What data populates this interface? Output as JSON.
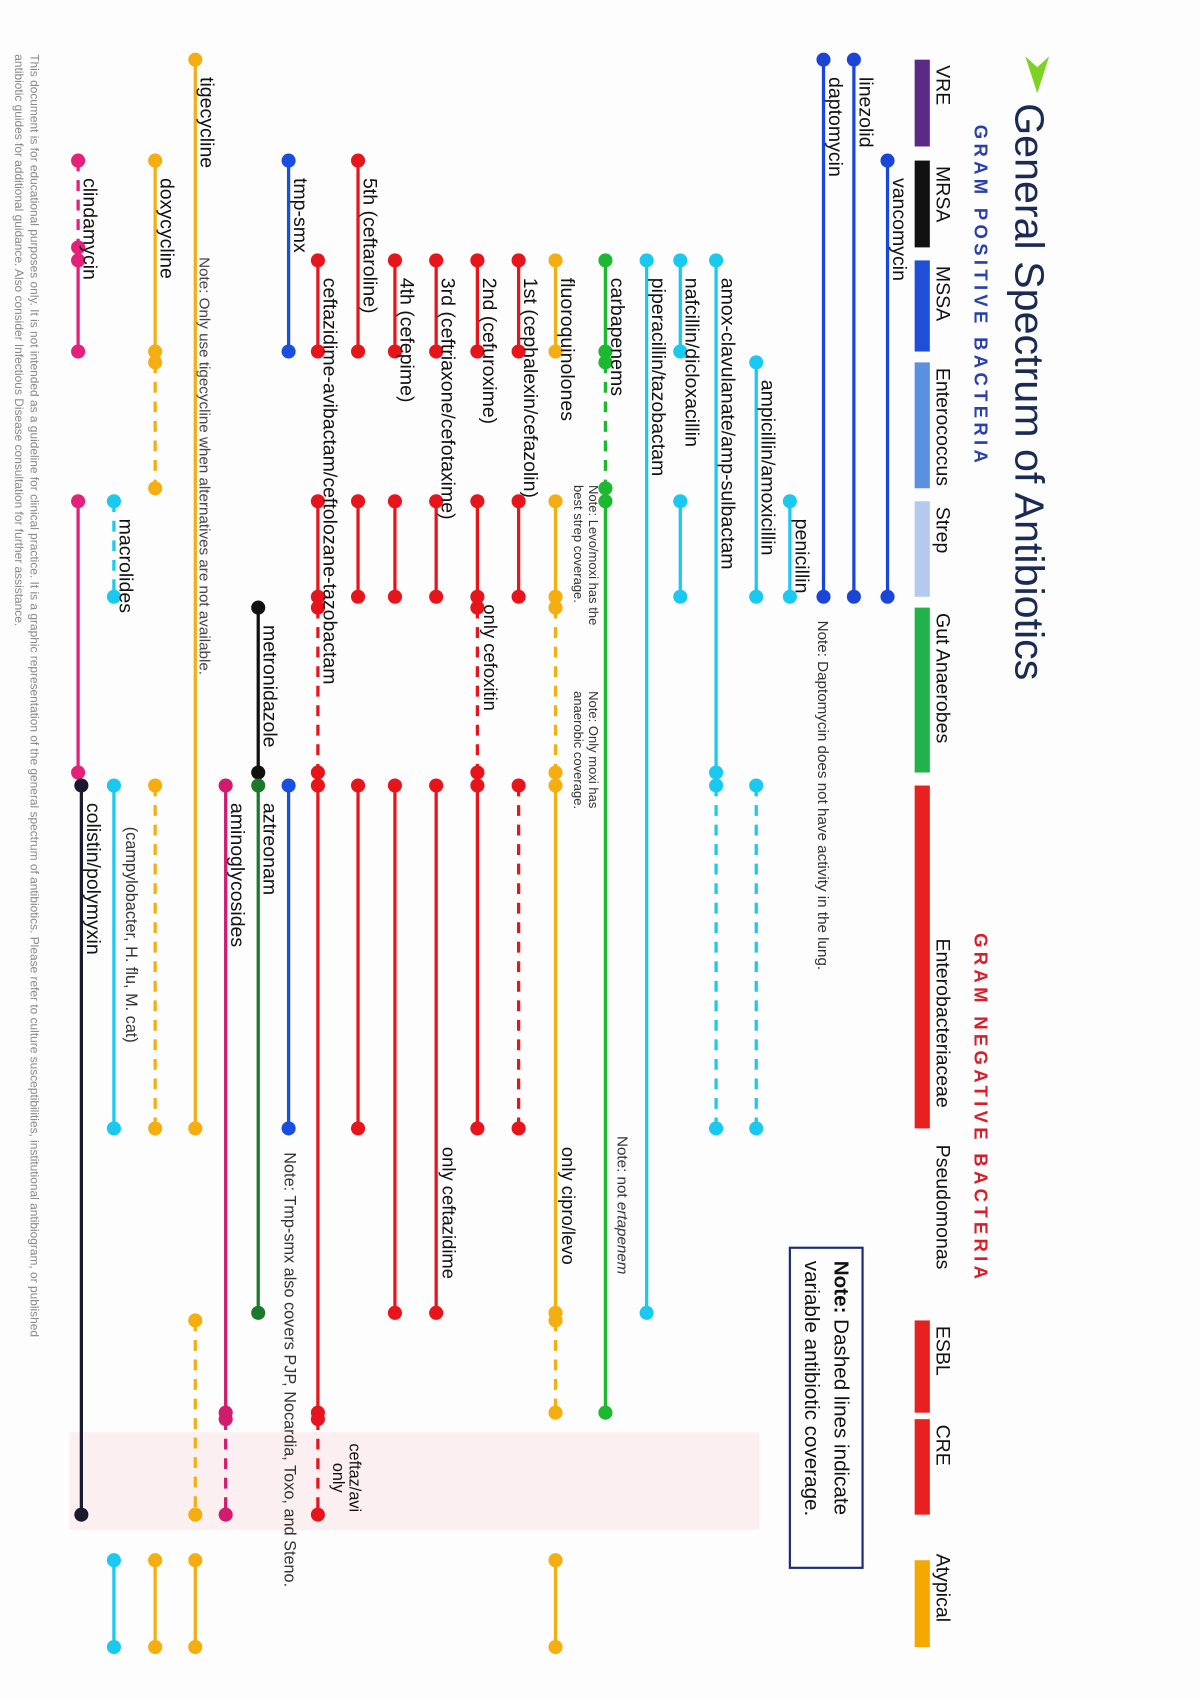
{
  "title": "General Spectrum of Antibiotics",
  "gram_positive_heading": "GRAM POSITIVE BACTERIA",
  "gram_negative_heading": "GRAM NEGATIVE BACTERIA",
  "bacteria": [
    {
      "name": "VRE",
      "color": "#5b2a86"
    },
    {
      "name": "MRSA",
      "color": "#111111"
    },
    {
      "name": "MSSA",
      "color": "#1f4fd6"
    },
    {
      "name": "Enterococcus",
      "color": "#5b8fe0"
    },
    {
      "name": "Strep",
      "color": "#b3c9ef"
    },
    {
      "name": "Gut Anaerobes",
      "color": "#22b24c"
    },
    {
      "name": "Enterobacteriaceae",
      "color": "#e8201f"
    },
    {
      "name": "Pseudomonas",
      "color": ""
    },
    {
      "name": "ESBL",
      "color": "#e8201f"
    },
    {
      "name": "CRE",
      "color": "#e8201f"
    },
    {
      "name": "Atypical",
      "color": "#f5a800"
    }
  ],
  "legend_note": {
    "bold": "Note:",
    "line1": " Dashed lines indicate",
    "line2": "variable antibiotic coverage."
  },
  "antibiotics": [
    {
      "label": "vancomycin",
      "color": "#1a45d8",
      "coverage": [
        {
          "from": "MRSA",
          "to": "Strep",
          "style": "solid"
        }
      ]
    },
    {
      "label": "linezolid",
      "color": "#1a45d8",
      "coverage": [
        {
          "from": "VRE",
          "to": "Strep",
          "style": "solid"
        }
      ]
    },
    {
      "label": "daptomycin",
      "color": "#1a45d8",
      "coverage": [
        {
          "from": "VRE",
          "to": "Strep",
          "style": "solid"
        }
      ]
    },
    {
      "label": "penicillin",
      "color": "#19c9ef",
      "coverage": [
        {
          "from": "Strep",
          "to": "Strep",
          "style": "solid"
        }
      ]
    },
    {
      "label": "ampicillin/amoxicillin",
      "color": "#19c9ef",
      "coverage": [
        {
          "from": "Enterococcus",
          "to": "Strep",
          "style": "solid"
        },
        {
          "from": "Enterobacteriaceae",
          "to": "Enterobacteriaceae",
          "style": "dashed"
        }
      ]
    },
    {
      "label": "amox-clavulanate/amp-sulbactam",
      "color": "#19c9ef",
      "coverage": [
        {
          "from": "MSSA",
          "to": "Gut Anaerobes",
          "style": "solid"
        },
        {
          "from": "Enterobacteriaceae",
          "to": "Enterobacteriaceae",
          "style": "dashed"
        }
      ]
    },
    {
      "label": "nafcillin/dicloxacillin",
      "color": "#19c9ef",
      "coverage": [
        {
          "from": "MSSA",
          "to": "MSSA",
          "style": "solid"
        },
        {
          "from": "Strep",
          "to": "Strep",
          "style": "solid"
        }
      ]
    },
    {
      "label": "piperacillin/tazobactam",
      "color": "#19c9ef",
      "coverage": [
        {
          "from": "MSSA",
          "to": "Pseudomonas",
          "style": "solid"
        }
      ]
    },
    {
      "label": "carbapenems",
      "color": "#1cb82f",
      "coverage": [
        {
          "from": "MSSA",
          "to": "MSSA",
          "style": "solid"
        },
        {
          "from": "Enterococcus",
          "to": "Enterococcus",
          "style": "dashed"
        },
        {
          "from": "Strep",
          "to": "ESBL",
          "style": "solid"
        }
      ]
    },
    {
      "label": "fluoroquinolones",
      "color": "#f5ae10",
      "coverage": [
        {
          "from": "MSSA",
          "to": "MSSA",
          "style": "solid"
        },
        {
          "from": "Strep",
          "to": "Strep",
          "style": "solid"
        },
        {
          "from": "Gut Anaerobes",
          "to": "Gut Anaerobes",
          "style": "dashed"
        },
        {
          "from": "Enterobacteriaceae",
          "to": "Pseudomonas",
          "style": "solid"
        },
        {
          "from": "ESBL",
          "to": "ESBL",
          "style": "dashed"
        },
        {
          "from": "Atypical",
          "to": "Atypical",
          "style": "solid"
        }
      ]
    },
    {
      "label": "1st (cephalexin/cefazolin)",
      "color": "#e8141c",
      "coverage": [
        {
          "from": "MSSA",
          "to": "MSSA",
          "style": "solid"
        },
        {
          "from": "Strep",
          "to": "Strep",
          "style": "solid"
        },
        {
          "from": "Enterobacteriaceae",
          "to": "Enterobacteriaceae",
          "style": "dashed"
        }
      ]
    },
    {
      "label": "2nd (cefuroxime)",
      "color": "#e8141c",
      "coverage": [
        {
          "from": "MSSA",
          "to": "MSSA",
          "style": "solid"
        },
        {
          "from": "Strep",
          "to": "Strep",
          "style": "solid"
        },
        {
          "from": "Gut Anaerobes",
          "to": "Gut Anaerobes",
          "style": "dashed"
        },
        {
          "from": "Enterobacteriaceae",
          "to": "Enterobacteriaceae",
          "style": "solid"
        }
      ]
    },
    {
      "label": "3rd (ceftriaxone/cefotaxime)",
      "color": "#e8141c",
      "coverage": [
        {
          "from": "MSSA",
          "to": "MSSA",
          "style": "solid"
        },
        {
          "from": "Strep",
          "to": "Strep",
          "style": "solid"
        },
        {
          "from": "Enterobacteriaceae",
          "to": "Pseudomonas",
          "style": "solid"
        }
      ]
    },
    {
      "label": "4th (cefepime)",
      "color": "#e8141c",
      "coverage": [
        {
          "from": "MSSA",
          "to": "MSSA",
          "style": "solid"
        },
        {
          "from": "Strep",
          "to": "Strep",
          "style": "solid"
        },
        {
          "from": "Enterobacteriaceae",
          "to": "Pseudomonas",
          "style": "solid"
        }
      ]
    },
    {
      "label": "5th (ceftaroline)",
      "color": "#e8141c",
      "coverage": [
        {
          "from": "MRSA",
          "to": "MSSA",
          "style": "solid"
        },
        {
          "from": "Strep",
          "to": "Strep",
          "style": "solid"
        },
        {
          "from": "Enterobacteriaceae",
          "to": "Enterobacteriaceae",
          "style": "solid"
        }
      ]
    },
    {
      "label": "ceftazidime-avibactam/ceftolozane-tazobactam",
      "color": "#e8141c",
      "coverage": [
        {
          "from": "MSSA",
          "to": "MSSA",
          "style": "solid"
        },
        {
          "from": "Strep",
          "to": "Strep",
          "style": "solid"
        },
        {
          "from": "Gut Anaerobes",
          "to": "Gut Anaerobes",
          "style": "dashed"
        },
        {
          "from": "Enterobacteriaceae",
          "to": "ESBL",
          "style": "solid"
        },
        {
          "from": "CRE",
          "to": "CRE",
          "style": "dashed"
        }
      ]
    },
    {
      "label": "tmp-smx",
      "color": "#1a4ee0",
      "coverage": [
        {
          "from": "MRSA",
          "to": "MSSA",
          "style": "solid"
        },
        {
          "from": "Enterobacteriaceae",
          "to": "Enterobacteriaceae",
          "style": "solid"
        }
      ]
    },
    {
      "label": "metronidazole",
      "color": "#111111",
      "coverage": [
        {
          "from": "Gut Anaerobes",
          "to": "Gut Anaerobes",
          "style": "solid"
        }
      ]
    },
    {
      "label": "aztreonam",
      "color": "#1a7a2a",
      "coverage": [
        {
          "from": "Enterobacteriaceae",
          "to": "Pseudomonas",
          "style": "solid"
        }
      ]
    },
    {
      "label": "aminoglycosides",
      "color": "#d21b6e",
      "coverage": [
        {
          "from": "Enterobacteriaceae",
          "to": "ESBL",
          "style": "solid"
        },
        {
          "from": "CRE",
          "to": "CRE",
          "style": "dashed"
        }
      ]
    },
    {
      "label": "tigecycline",
      "color": "#f5ae10",
      "coverage": [
        {
          "from": "VRE",
          "to": "Enterobacteriaceae",
          "style": "solid"
        },
        {
          "from": "ESBL",
          "to": "CRE",
          "style": "dashed"
        },
        {
          "from": "Atypical",
          "to": "Atypical",
          "style": "solid"
        }
      ]
    },
    {
      "label": "doxycycline",
      "color": "#f5ae10",
      "coverage": [
        {
          "from": "MRSA",
          "to": "MSSA",
          "style": "solid"
        },
        {
          "from": "Enterococcus",
          "to": "Enterococcus",
          "style": "dashed"
        },
        {
          "from": "Enterobacteriaceae",
          "to": "Enterobacteriaceae",
          "style": "dashed"
        },
        {
          "from": "Atypical",
          "to": "Atypical",
          "style": "solid"
        }
      ]
    },
    {
      "label": "macrolides",
      "color": "#19c9ef",
      "coverage": [
        {
          "from": "Strep",
          "to": "Strep",
          "style": "dashed"
        },
        {
          "from": "Enterobacteriaceae",
          "to": "Enterobacteriaceae",
          "style": "solid"
        },
        {
          "from": "Atypical",
          "to": "Atypical",
          "style": "solid"
        }
      ]
    },
    {
      "label": "clindamycin",
      "color": "#e4207a",
      "coverage": [
        {
          "from": "MRSA",
          "to": "MRSA",
          "style": "dashed"
        },
        {
          "from": "MSSA",
          "to": "MSSA",
          "style": "solid"
        },
        {
          "from": "Strep",
          "to": "Gut Anaerobes",
          "style": "solid"
        }
      ]
    },
    {
      "label": "colistin/polymyxin",
      "color": "#1a1a2e",
      "coverage": [
        {
          "from": "Enterobacteriaceae",
          "to": "CRE",
          "style": "solid"
        }
      ]
    }
  ],
  "notes": {
    "daptomycin": "Note: Daptomycin does not have activity in the lung.",
    "ertapenem": {
      "text": "Note: not ",
      "italic": "ertapenem"
    },
    "levo_moxi": [
      "Note: Levo/moxi has the",
      "best strep coverage."
    ],
    "only_moxi": [
      "Note: Only moxi has",
      "anaerobic coverage."
    ],
    "cipro_levo": "only cipro/levo",
    "cefoxitin": "only cefoxitin",
    "ceftazidime": "only ceftazidime",
    "ceftaz_avi": [
      "ceftaz/avi",
      "only"
    ],
    "tmp_smx": "Note: Tmp-smx also covers PJP, Nocardia, Toxo, and Steno.",
    "tigecycline": "Note: Only use tigecycline when alternatives are not available.",
    "macrolides": "(campylobacter, H. flu, M. cat)"
  },
  "footer": [
    "This document is for educational purposes only. It is not intended as a guideline for clinical practice. It is a graphic representation of the general spectrum of antibiotics. Please refer to culture susceptibilities, institutional antibiogram, or published",
    "antibiotic guides for additional guidance. Also consider Infectious Disease consultation for further assistance."
  ]
}
